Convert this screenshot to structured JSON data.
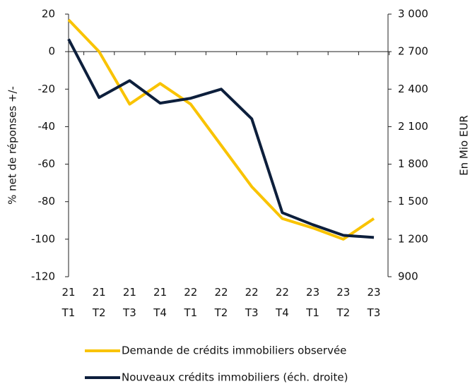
{
  "chart_data": {
    "type": "line",
    "y_label": "% net de réponses +/-",
    "y2_label": "En Mio EUR",
    "categories": [
      "21 T1",
      "21 T2",
      "21 T3",
      "21 T4",
      "22 T1",
      "22 T2",
      "22 T3",
      "22 T4",
      "23 T1",
      "23 T2",
      "23 T3"
    ],
    "ylim": [
      -120,
      20
    ],
    "yticks": [
      20,
      0,
      -20,
      -40,
      -60,
      -80,
      -100,
      -120
    ],
    "y2lim": [
      900,
      3000
    ],
    "y2ticks": [
      {
        "value": 3000,
        "label": "3 000"
      },
      {
        "value": 2700,
        "label": "2 700"
      },
      {
        "value": 2400,
        "label": "2 400"
      },
      {
        "value": 2100,
        "label": "2 100"
      },
      {
        "value": 1800,
        "label": "1 800"
      },
      {
        "value": 1500,
        "label": "1 500"
      },
      {
        "value": 1200,
        "label": "1 200"
      },
      900
    ],
    "series": [
      {
        "name": "Demande de crédits immobiliers observée",
        "color": "#f9c300",
        "values": [
          17,
          0,
          -28,
          -17,
          -28,
          -50,
          -72,
          -89,
          -94,
          -100,
          -89
        ]
      },
      {
        "name": "Nouveaux crédits immobiliers (éch. droite)",
        "color": "#0d1f3c",
        "axis": "y2",
        "values": [
          2800,
          2333,
          2468,
          2288,
          2327,
          2400,
          2163,
          1412,
          1316,
          1231,
          1214
        ]
      }
    ]
  }
}
